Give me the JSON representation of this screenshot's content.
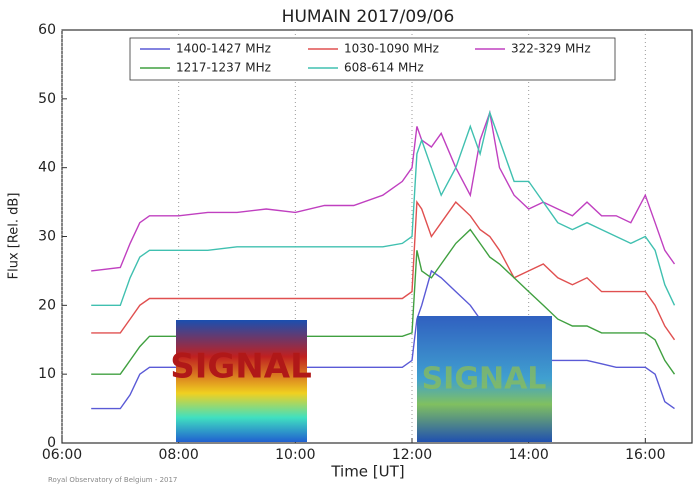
{
  "chart_data": {
    "type": "line",
    "title": "HUMAIN 2017/09/06",
    "x_label": "Time [UT]",
    "y_label": "Flux [Rel. dB]",
    "footer": "Royal Observatory of Belgium - 2017",
    "overlay_text": "SIGNAL",
    "grid": "x",
    "xlim": [
      "06:00",
      "16:48"
    ],
    "xticks": [
      "06:00",
      "08:00",
      "10:00",
      "12:00",
      "14:00",
      "16:00"
    ],
    "ylim": [
      0,
      60
    ],
    "yticks": [
      0,
      10,
      20,
      30,
      40,
      50,
      60
    ],
    "x": [
      "06:30",
      "07:00",
      "07:10",
      "07:20",
      "07:30",
      "08:00",
      "08:30",
      "09:00",
      "09:30",
      "10:00",
      "10:30",
      "11:00",
      "11:30",
      "11:50",
      "12:00",
      "12:05",
      "12:10",
      "12:20",
      "12:30",
      "12:45",
      "13:00",
      "13:10",
      "13:20",
      "13:30",
      "13:45",
      "14:00",
      "14:15",
      "14:30",
      "14:45",
      "15:00",
      "15:15",
      "15:30",
      "15:45",
      "16:00",
      "16:10",
      "16:20",
      "16:30"
    ],
    "series": [
      {
        "name": "1400-1427 MHz",
        "color": "#5a5ad6",
        "values": [
          5,
          5,
          7,
          10,
          11,
          11,
          11,
          11,
          11,
          11,
          11,
          11,
          11,
          11,
          12,
          18,
          20,
          25,
          24,
          22,
          20,
          18,
          16,
          14,
          13,
          12,
          12,
          12,
          12,
          12,
          11.5,
          11,
          11,
          11,
          10,
          6,
          5
        ]
      },
      {
        "name": "1030-1090 MHz",
        "color": "#e05050",
        "values": [
          16,
          16,
          18,
          20,
          21,
          21,
          21,
          21,
          21,
          21,
          21,
          21,
          21,
          21,
          22,
          35,
          34,
          30,
          32,
          35,
          33,
          31,
          30,
          28,
          24,
          25,
          26,
          24,
          23,
          24,
          22,
          22,
          22,
          22,
          20,
          17,
          15
        ]
      },
      {
        "name": "322-329 MHz",
        "color": "#c040c0",
        "values": [
          25,
          25.5,
          29,
          32,
          33,
          33,
          33.5,
          33.5,
          34,
          33.5,
          34.5,
          34.5,
          36,
          38,
          40,
          46,
          44,
          43,
          45,
          40,
          36,
          44,
          48,
          40,
          36,
          34,
          35,
          34,
          33,
          35,
          33,
          33,
          32,
          36,
          32,
          28,
          26
        ]
      },
      {
        "name": "1217-1237 MHz",
        "color": "#40a040",
        "values": [
          10,
          10,
          12,
          14,
          15.5,
          15.5,
          15.5,
          15.5,
          15.5,
          15.5,
          15.5,
          15.5,
          15.5,
          15.5,
          16,
          28,
          25,
          24,
          26,
          29,
          31,
          29,
          27,
          26,
          24,
          22,
          20,
          18,
          17,
          17,
          16,
          16,
          16,
          16,
          15,
          12,
          10
        ]
      },
      {
        "name": "608-614 MHz",
        "color": "#40c0b0",
        "values": [
          20,
          20,
          24,
          27,
          28,
          28,
          28,
          28.5,
          28.5,
          28.5,
          28.5,
          28.5,
          28.5,
          29,
          30,
          42,
          44,
          40,
          36,
          40,
          46,
          42,
          48,
          44,
          38,
          38,
          35,
          32,
          31,
          32,
          31,
          30,
          29,
          30,
          28,
          23,
          20
        ]
      }
    ]
  }
}
